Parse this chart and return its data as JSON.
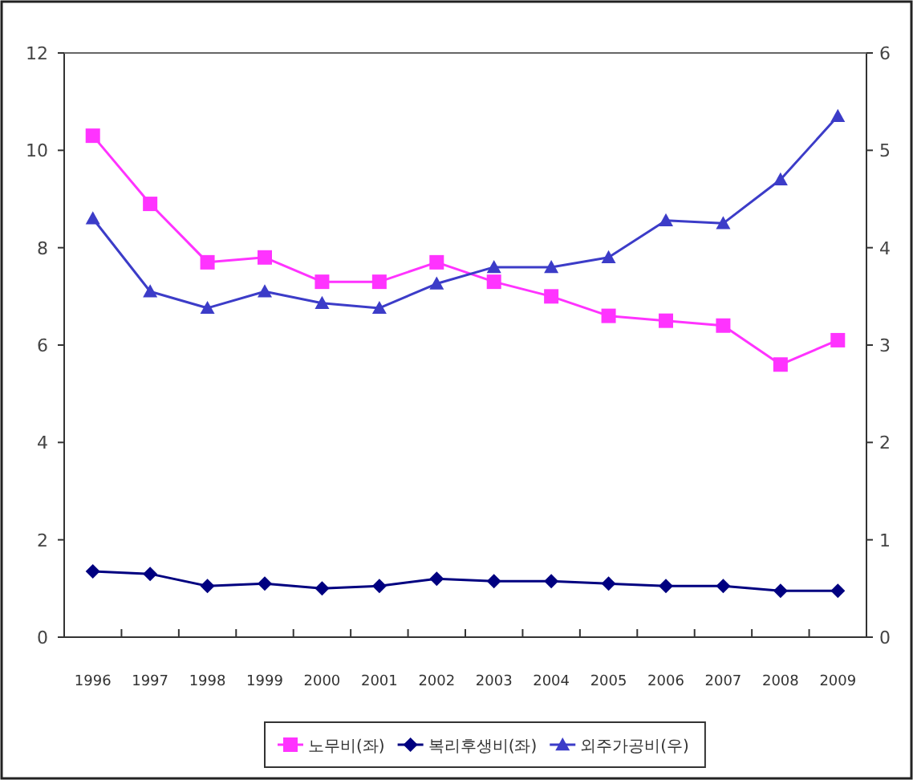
{
  "chart_data": {
    "type": "line",
    "categories": [
      "1996",
      "1997",
      "1998",
      "1999",
      "2000",
      "2001",
      "2002",
      "2003",
      "2004",
      "2005",
      "2006",
      "2007",
      "2008",
      "2009"
    ],
    "series": [
      {
        "name": "노무비(좌)",
        "color": "#ff33ff",
        "marker": "square",
        "values": [
          10.3,
          8.9,
          7.7,
          7.8,
          7.3,
          7.3,
          7.7,
          7.3,
          7.0,
          6.6,
          6.5,
          6.4,
          5.6,
          6.1
        ]
      },
      {
        "name": "복리후생비(좌)",
        "color": "#000080",
        "marker": "diamond",
        "values": [
          1.35,
          1.3,
          1.05,
          1.1,
          1.0,
          1.05,
          1.2,
          1.15,
          1.15,
          1.1,
          1.05,
          1.05,
          0.95,
          0.95
        ]
      },
      {
        "name": "외주가공비(우)",
        "color": "#3c3cc8",
        "marker": "triangle",
        "axis": "y2",
        "values": [
          4.3,
          3.55,
          3.38,
          3.55,
          3.43,
          3.38,
          3.63,
          3.8,
          3.8,
          3.9,
          4.28,
          4.25,
          4.7,
          5.35
        ]
      }
    ],
    "ylim": [
      0,
      12
    ],
    "yticks": [
      0,
      2,
      4,
      6,
      8,
      10,
      12
    ],
    "y2lim": [
      0,
      6
    ],
    "y2ticks": [
      0,
      1,
      2,
      3,
      4,
      5,
      6
    ],
    "grid": false,
    "legend": "bottom"
  }
}
